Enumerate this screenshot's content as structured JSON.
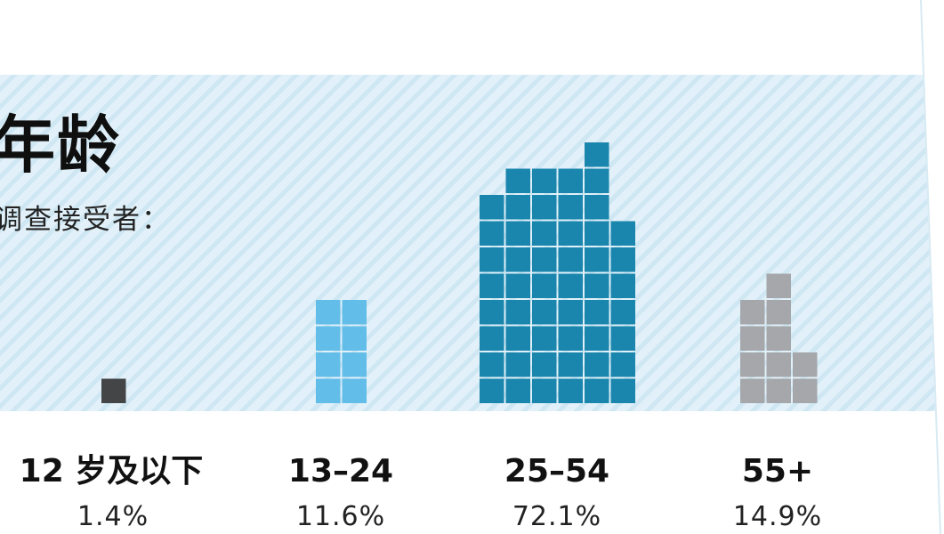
{
  "title": "年龄",
  "subtitle": "调查接受者：",
  "chart_data": {
    "type": "bar",
    "title": "年龄",
    "subtitle": "调查接受者：",
    "xlabel": "",
    "ylabel": "",
    "categories": [
      "12 岁及以下",
      "13–24",
      "25–54",
      "55+"
    ],
    "values": [
      1.4,
      11.6,
      72.1,
      14.9
    ],
    "value_labels": [
      "1.4%",
      "11.6%",
      "72.1%",
      "14.9%"
    ],
    "unit": "%",
    "colors": [
      "#434547",
      "#62bde9",
      "#1a86ad",
      "#a5a7aa"
    ],
    "encoding": "waffle squares, about 1 square per 1.4% of respondents",
    "grid": false,
    "legend": "none"
  }
}
